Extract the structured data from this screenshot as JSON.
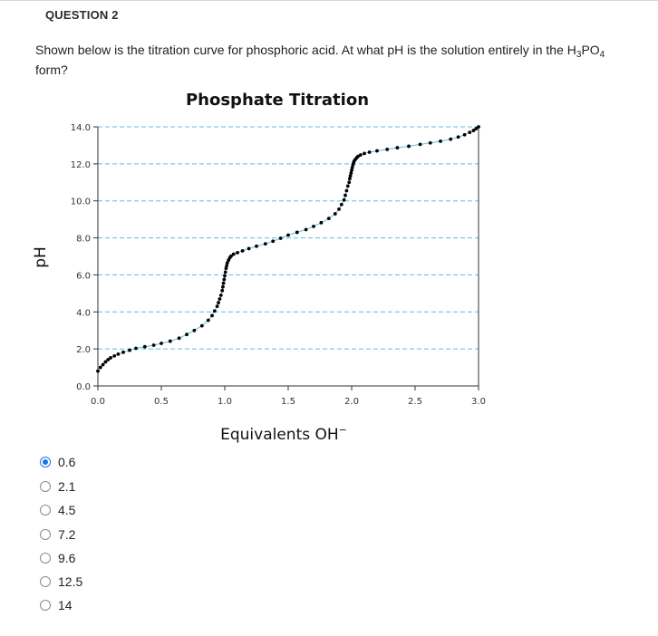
{
  "question": {
    "heading": "QUESTION 2",
    "text_before": "Shown below is the titration curve for phosphoric acid. At what pH is the solution entirely in the H",
    "sub1": "3",
    "text_mid": "PO",
    "sub2": "4",
    "text_after": " form?"
  },
  "chart_data": {
    "type": "scatter",
    "title": "Phosphate Titration",
    "xlabel": "Equivalents OH",
    "xlabel_sup": "−",
    "ylabel": "pH",
    "xlim": [
      0.0,
      3.0
    ],
    "ylim": [
      0.0,
      14.0
    ],
    "xticks": [
      "0.0",
      "0.5",
      "1.0",
      "1.5",
      "2.0",
      "2.5",
      "3.0"
    ],
    "yticks": [
      "0.0",
      "2.0",
      "4.0",
      "6.0",
      "8.0",
      "10.0",
      "12.0",
      "14.0"
    ],
    "grid": "horizontal dashed",
    "colors": {
      "grid": "#5bc0de",
      "curve": "#5bc0de",
      "points": "#000000"
    },
    "series": [
      {
        "x": [
          0.0,
          0.02,
          0.04,
          0.06,
          0.08,
          0.1,
          0.13,
          0.16,
          0.2,
          0.25,
          0.3,
          0.37,
          0.44,
          0.5,
          0.57,
          0.64,
          0.7,
          0.76,
          0.82,
          0.87,
          0.9,
          0.92,
          0.94,
          0.95,
          0.96,
          0.97,
          0.98,
          0.985,
          0.99,
          0.995,
          1.0,
          1.005,
          1.01,
          1.015,
          1.02,
          1.03,
          1.04,
          1.05,
          1.07,
          1.1,
          1.14,
          1.19,
          1.25,
          1.32,
          1.38,
          1.44,
          1.5,
          1.57,
          1.64,
          1.7,
          1.76,
          1.82,
          1.87,
          1.9,
          1.92,
          1.94,
          1.95,
          1.96,
          1.97,
          1.98,
          1.985,
          1.99,
          1.995,
          2.0,
          2.005,
          2.01,
          2.015,
          2.02,
          2.03,
          2.04,
          2.05,
          2.07,
          2.1,
          2.14,
          2.2,
          2.28,
          2.36,
          2.45,
          2.54,
          2.62,
          2.7,
          2.78,
          2.84,
          2.89,
          2.93,
          2.96,
          2.98,
          3.0
        ],
        "y": [
          0.8,
          1.0,
          1.15,
          1.3,
          1.42,
          1.52,
          1.62,
          1.72,
          1.82,
          1.93,
          2.03,
          2.12,
          2.2,
          2.3,
          2.42,
          2.58,
          2.78,
          3.0,
          3.25,
          3.55,
          3.8,
          4.05,
          4.3,
          4.5,
          4.7,
          4.9,
          5.15,
          5.35,
          5.55,
          5.75,
          5.95,
          6.15,
          6.35,
          6.5,
          6.65,
          6.8,
          6.93,
          7.02,
          7.12,
          7.2,
          7.3,
          7.42,
          7.55,
          7.68,
          7.82,
          7.98,
          8.15,
          8.3,
          8.45,
          8.62,
          8.82,
          9.05,
          9.3,
          9.55,
          9.8,
          10.05,
          10.3,
          10.55,
          10.8,
          11.0,
          11.2,
          11.35,
          11.5,
          11.65,
          11.8,
          11.95,
          12.05,
          12.15,
          12.25,
          12.33,
          12.4,
          12.48,
          12.56,
          12.63,
          12.7,
          12.78,
          12.87,
          12.95,
          13.05,
          13.13,
          13.22,
          13.33,
          13.45,
          13.57,
          13.7,
          13.8,
          13.9,
          14.0
        ]
      }
    ]
  },
  "options": [
    {
      "label": "0.6",
      "selected": true
    },
    {
      "label": "2.1",
      "selected": false
    },
    {
      "label": "4.5",
      "selected": false
    },
    {
      "label": "7.2",
      "selected": false
    },
    {
      "label": "9.6",
      "selected": false
    },
    {
      "label": "12.5",
      "selected": false
    },
    {
      "label": "14",
      "selected": false
    }
  ]
}
